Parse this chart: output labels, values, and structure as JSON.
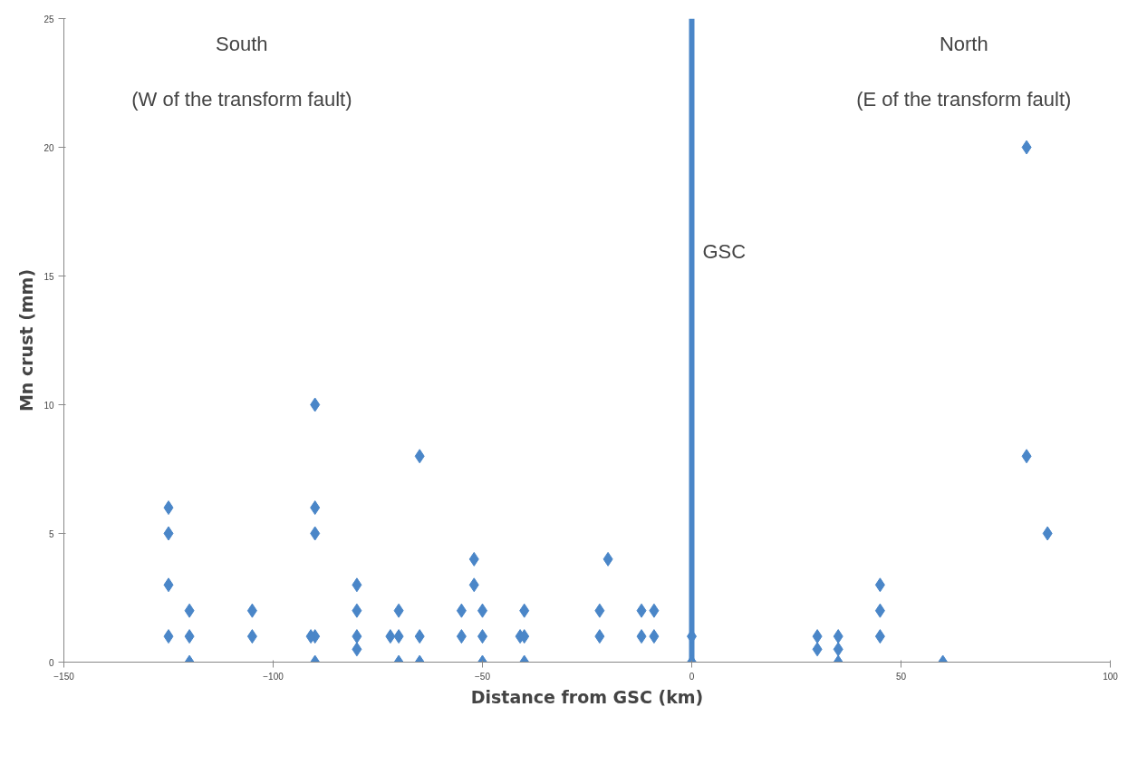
{
  "chart_data": {
    "type": "scatter",
    "xlabel": "Distance from GSC (km)",
    "ylabel": "Mn crust (mm)",
    "xlim": [
      -150,
      100
    ],
    "xticks": [
      -150,
      -100,
      -50,
      0,
      50,
      100
    ],
    "ylim": [
      0,
      25
    ],
    "yticks": [
      0,
      5,
      10,
      15,
      20,
      25
    ],
    "grid": false,
    "marker": "diamond",
    "series": [
      {
        "color": "#4a86c8",
        "x": [
          -125,
          -125,
          -125,
          -125,
          -120,
          -120,
          -120,
          -105,
          -105,
          -90,
          -90,
          -90,
          -90,
          -90,
          -91,
          -80,
          -80,
          -80,
          -80,
          -72,
          -70,
          -70,
          -70,
          -65,
          -65,
          -65,
          -55,
          -55,
          -52,
          -52,
          -50,
          -50,
          -50,
          -41,
          -40,
          -40,
          -40,
          -22,
          -22,
          -20,
          -12,
          -12,
          -9,
          -9,
          0,
          0,
          30,
          30,
          35,
          35,
          35,
          45,
          45,
          45,
          60,
          80,
          80,
          85
        ],
        "values": [
          6,
          5,
          3,
          1,
          2,
          1,
          0,
          2,
          1,
          10,
          6,
          5,
          1,
          0,
          1,
          3,
          2,
          1,
          0.5,
          1,
          2,
          1,
          0,
          8,
          1,
          0,
          2,
          1,
          4,
          3,
          2,
          1,
          0,
          1,
          2,
          1,
          0,
          2,
          1,
          4,
          2,
          1,
          2,
          1,
          1,
          0,
          1,
          0.5,
          1,
          0.5,
          0,
          3,
          2,
          1,
          0,
          20,
          8,
          5
        ]
      }
    ],
    "ref_lines": [
      {
        "axis": "x",
        "value": 0,
        "label": "GSC",
        "color": "#4a86c8"
      }
    ],
    "annotations": [
      "South",
      "(W of the transform fault)",
      "North",
      "(E of the transform fault)"
    ]
  }
}
